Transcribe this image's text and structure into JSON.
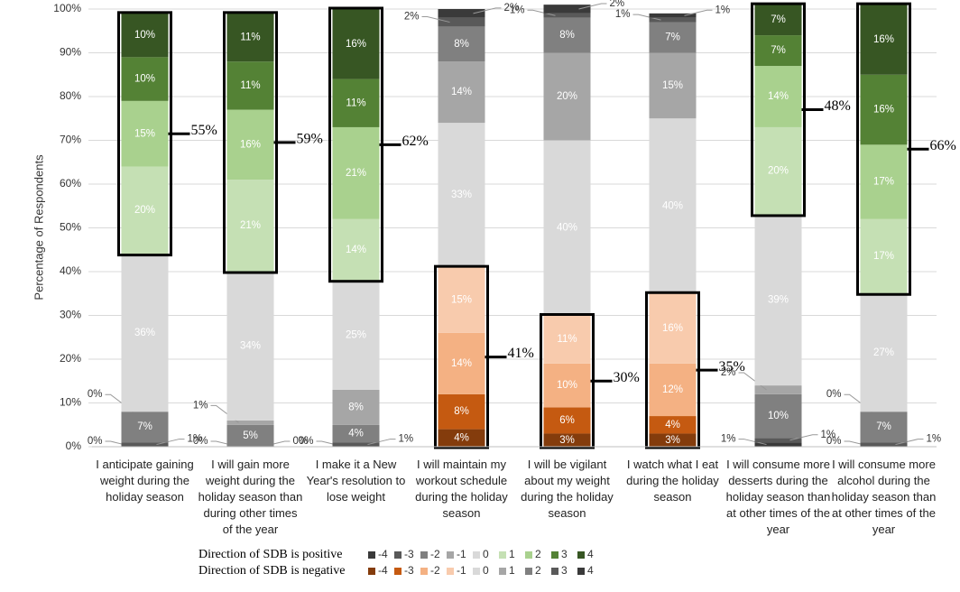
{
  "chart_data": {
    "type": "stacked_bar",
    "ylabel": "Percentage of Respondents",
    "categories": [
      "I anticipate gaining weight during the holiday season",
      "I will gain more weight during the holiday season than during other times of the year",
      "I make it a New Year's resolution to lose weight",
      "I will maintain my workout schedule during the holiday season",
      "I will be vigilant about my weight during the holiday season",
      "I watch what I eat during the holiday season",
      "I will consume more desserts during the holiday season than at other times of the year",
      "I will consume more alcohol during the holiday season than at other times of the year"
    ],
    "series": [
      {
        "name": "-4",
        "values": [
          0,
          0,
          0,
          4,
          3,
          3,
          1,
          0
        ],
        "value_labels": [
          "0%",
          "0%",
          "0%",
          "4%",
          "3%",
          "3%",
          "1%",
          "0%"
        ]
      },
      {
        "name": "-3",
        "values": [
          1,
          0,
          1,
          8,
          6,
          4,
          1,
          1
        ],
        "value_labels": [
          "1%",
          "0%",
          "1%",
          "8%",
          "6%",
          "4%",
          "1%",
          "1%"
        ]
      },
      {
        "name": "-2",
        "values": [
          7,
          5,
          4,
          14,
          10,
          12,
          10,
          7
        ],
        "value_labels": [
          "7%",
          "5%",
          "4%",
          "14%",
          "10%",
          "12%",
          "10%",
          "7%"
        ]
      },
      {
        "name": "-1",
        "values": [
          0,
          1,
          8,
          15,
          11,
          16,
          2,
          0
        ],
        "value_labels": [
          "0%",
          "1%",
          "8%",
          "15%",
          "11%",
          "16%",
          "2%",
          "0%"
        ]
      },
      {
        "name": "0",
        "values": [
          36,
          34,
          25,
          33,
          40,
          40,
          39,
          27
        ],
        "value_labels": [
          "36%",
          "34%",
          "25%",
          "33%",
          "40%",
          "40%",
          "39%",
          "27%"
        ]
      },
      {
        "name": "1",
        "values": [
          20,
          21,
          14,
          14,
          20,
          15,
          20,
          17
        ],
        "value_labels": [
          "20%",
          "21%",
          "14%",
          "14%",
          "20%",
          "15%",
          "20%",
          "17%"
        ]
      },
      {
        "name": "2",
        "values": [
          15,
          16,
          21,
          8,
          8,
          7,
          14,
          17
        ],
        "value_labels": [
          "15%",
          "16%",
          "21%",
          "8%",
          "8%",
          "7%",
          "14%",
          "17%"
        ]
      },
      {
        "name": "3",
        "values": [
          10,
          11,
          11,
          2,
          1,
          1,
          7,
          16
        ],
        "value_labels": [
          "10%",
          "11%",
          "11%",
          "2%",
          "1%",
          "1%",
          "7%",
          "16%"
        ]
      },
      {
        "name": "4",
        "values": [
          10,
          11,
          16,
          2,
          2,
          1,
          7,
          16
        ],
        "value_labels": [
          "10%",
          "11%",
          "16%",
          "2%",
          "2%",
          "1%",
          "7%",
          "16%"
        ]
      }
    ],
    "legend": [
      {
        "title": "Direction of SDB is positive",
        "colors": [
          "#3a3a3a",
          "#595959",
          "#808080",
          "#a6a6a6",
          "#d9d9d9",
          "#c5e0b4",
          "#a9d18e",
          "#548235",
          "#375623"
        ]
      },
      {
        "title": "Direction of SDB is negative",
        "colors": [
          "#843c0c",
          "#c55a11",
          "#f4b183",
          "#f8cbad",
          "#d9d9d9",
          "#a6a6a6",
          "#808080",
          "#595959",
          "#3a3a3a"
        ]
      }
    ],
    "bar_group": [
      0,
      0,
      0,
      1,
      1,
      1,
      0,
      0
    ],
    "highlight_values": [
      55,
      59,
      62,
      41,
      30,
      35,
      48,
      66
    ],
    "highlight_labels": [
      "55%",
      "59%",
      "62%",
      "41%",
      "30%",
      "35%",
      "48%",
      "66%"
    ],
    "ylim": [
      0,
      100
    ],
    "yticks": [
      {
        "value": 0,
        "label": "0%"
      },
      {
        "value": 10,
        "label": "10%"
      },
      {
        "value": 20,
        "label": "20%"
      },
      {
        "value": 30,
        "label": "30%"
      },
      {
        "value": 40,
        "label": "40%"
      },
      {
        "value": 50,
        "label": "50%"
      },
      {
        "value": 60,
        "label": "60%"
      },
      {
        "value": 70,
        "label": "70%"
      },
      {
        "value": 80,
        "label": "80%"
      },
      {
        "value": 90,
        "label": "90%"
      },
      {
        "value": 100,
        "label": "100%"
      }
    ]
  }
}
